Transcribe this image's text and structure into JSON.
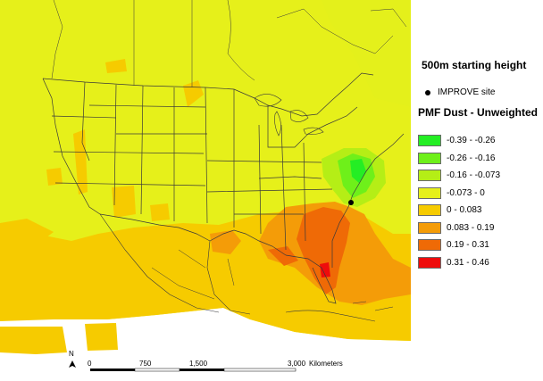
{
  "title": "500m starting height",
  "site_label": "IMPROVE site",
  "legend_title": "PMF Dust - Unweighted",
  "legend": [
    {
      "label": "-0.39 - -0.26",
      "color": "#24ee24"
    },
    {
      "label": "-0.26 - -0.16",
      "color": "#6ef01a"
    },
    {
      "label": "-0.16 - -0.073",
      "color": "#b5ee16"
    },
    {
      "label": "-0.073 - 0",
      "color": "#e6f01a"
    },
    {
      "label": "0 - 0.083",
      "color": "#f6cb00"
    },
    {
      "label": "0.083 - 0.19",
      "color": "#f49c08"
    },
    {
      "label": "0.19 - 0.31",
      "color": "#ef6a06"
    },
    {
      "label": "0.31 - 0.46",
      "color": "#ee0c0c"
    }
  ],
  "scale": {
    "ticks": [
      "0",
      "750",
      "1,500",
      "3,000"
    ],
    "unit": "Kilometers"
  },
  "north_label": "N"
}
